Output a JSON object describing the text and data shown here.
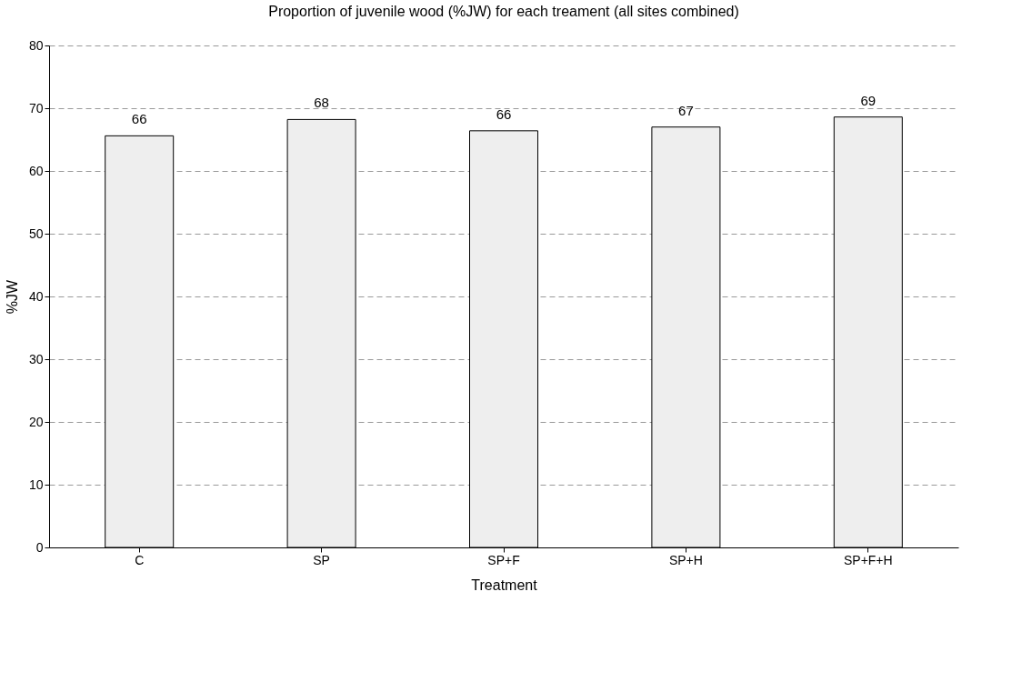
{
  "chart_data": {
    "type": "bar",
    "title": "Proportion of juvenile wood (%JW) for each treament (all sites combined)",
    "xlabel": "Treatment",
    "ylabel": "%JW",
    "categories": [
      "C",
      "SP",
      "SP+F",
      "SP+H",
      "SP+F+H"
    ],
    "values": [
      65.6,
      68.2,
      66.4,
      67.0,
      68.6
    ],
    "value_labels": [
      "66",
      "68",
      "66",
      "67",
      "69"
    ],
    "color": "#eeeeee",
    "ylim": [
      0,
      80
    ],
    "yticks": [
      0,
      10,
      20,
      30,
      40,
      50,
      60,
      70,
      80
    ],
    "grid": "y"
  }
}
